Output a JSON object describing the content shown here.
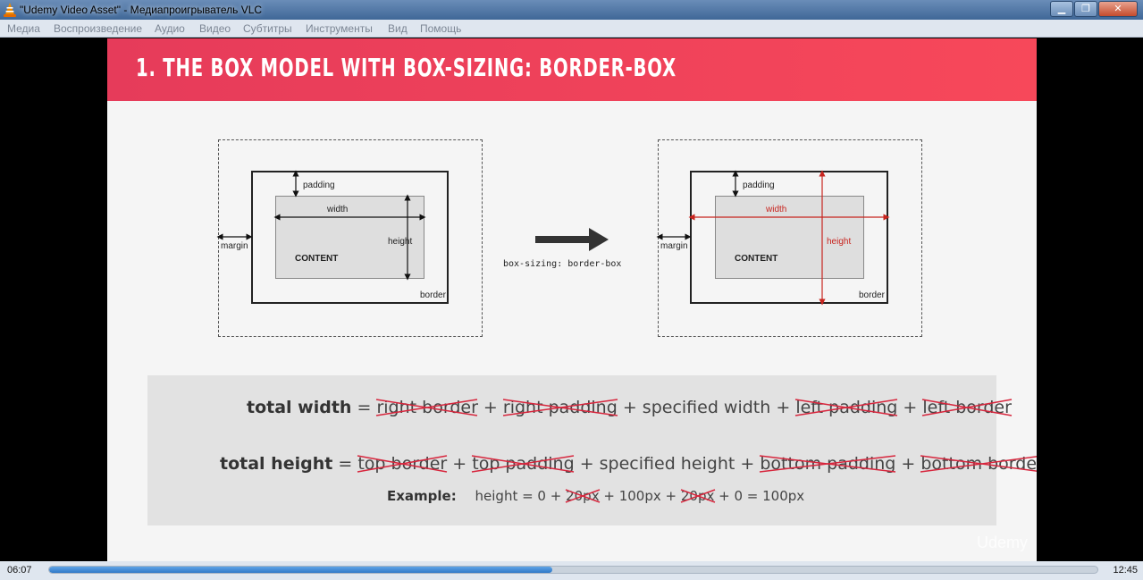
{
  "window": {
    "title": "\"Udemy Video Asset\" - Медиапроигрыватель VLC",
    "minimize_icon": "minimize-icon",
    "maximize_icon": "maximize-icon",
    "close_icon": "close-icon"
  },
  "menu": {
    "items": [
      "Медиа",
      "Воспроизведение",
      "Аудио",
      "Видео",
      "Субтитры",
      "Инструменты",
      "Вид",
      "Помощь"
    ]
  },
  "slide": {
    "title": "1. THE BOX MODEL WITH BOX-SIZING: BORDER-BOX",
    "left_diagram": {
      "padding": "padding",
      "width": "width",
      "height": "height",
      "margin": "margin",
      "content": "CONTENT",
      "border": "border"
    },
    "right_diagram": {
      "padding": "padding",
      "width": "width",
      "height": "height",
      "margin": "margin",
      "content": "CONTENT",
      "border": "border"
    },
    "arrow_caption": "box-sizing: border-box",
    "formula_width": {
      "label": "total width",
      "eq": "=",
      "t1": "right border",
      "p1": "+",
      "t2": "right padding",
      "p2": "+",
      "t3": "specified width",
      "p3": "+",
      "t4": "left padding",
      "p4": "+",
      "t5": "left border"
    },
    "formula_height": {
      "label": "total height",
      "eq": "=",
      "t1": "top border",
      "p1": "+",
      "t2": "top padding",
      "p2": "+",
      "t3": "specified height",
      "p3": "+",
      "t4": "bottom padding",
      "p4": "+",
      "t5": "bottom border"
    },
    "example": {
      "label": "Example:",
      "a": "height = 0 +",
      "b": "20px",
      "c": "+ 100px +",
      "d": "20px",
      "e": "+ 0 = 100px"
    },
    "watermark": "Udemy"
  },
  "player": {
    "elapsed": "06:07",
    "total": "12:45",
    "progress_fraction": 0.48
  },
  "colors": {
    "banner": "#e63b5a",
    "strike": "#d7263d",
    "highlight": "#c8251f",
    "seek": "#2e78c8"
  }
}
